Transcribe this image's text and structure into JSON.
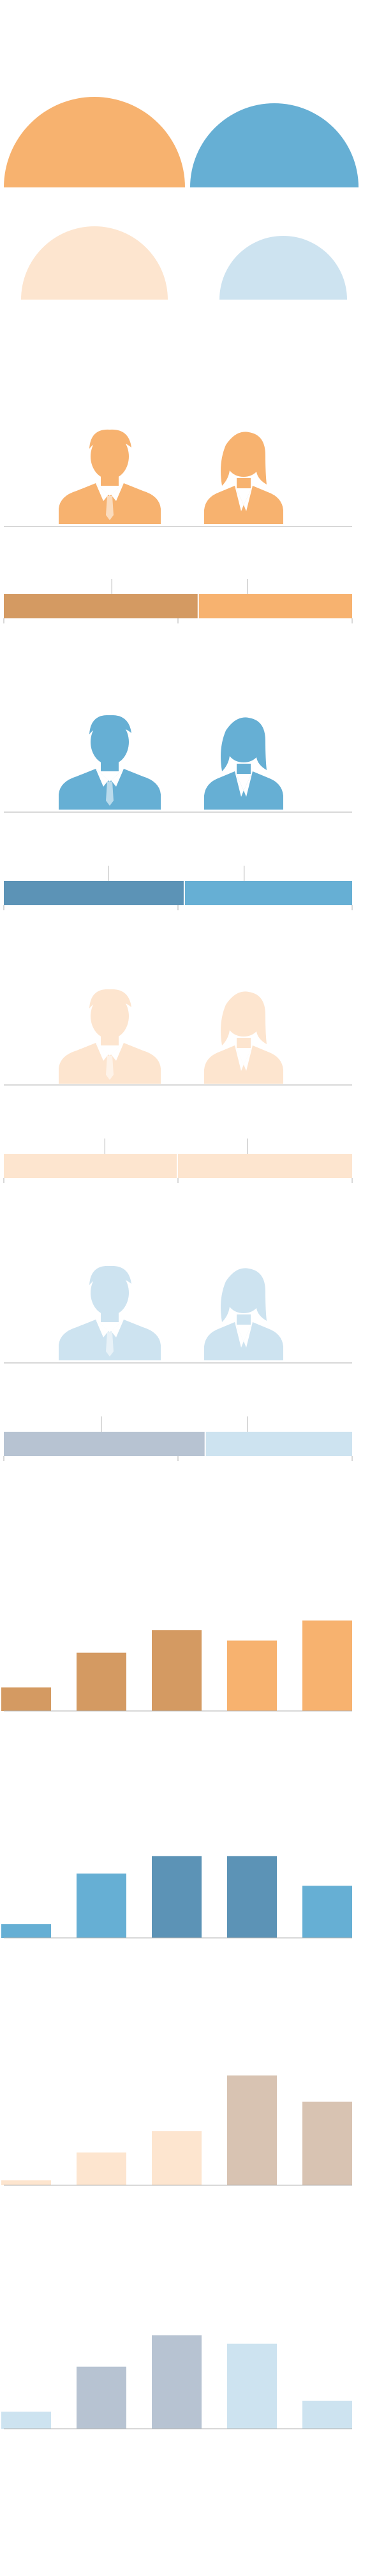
{
  "palette": {
    "orange": "#f7b26f",
    "orange_dark": "#d49a62",
    "orange_light": "#fde5cf",
    "blue": "#66afd4",
    "blue_dark": "#5c93b6",
    "blue_light": "#cde3f0",
    "slate": "#b7c3d2",
    "taupe": "#d8c3b2",
    "axis": "#b0b0b0"
  },
  "icons": [
    "half-disc-icon",
    "male-person-icon",
    "female-person-icon"
  ],
  "chart_data": [
    {
      "type": "semicircle-pair",
      "series": [
        {
          "values": [
            1,
            0.9
          ],
          "colors": [
            "orange",
            "blue"
          ]
        },
        {
          "values": [
            0.8,
            0.7
          ],
          "colors": [
            "orange_light",
            "blue_light"
          ]
        }
      ]
    },
    {
      "type": "pictograph-bar",
      "icons": [
        "male",
        "female"
      ],
      "icon_color": "orange",
      "bar_split": 0.56,
      "bar_colors": [
        "orange_dark",
        "orange"
      ],
      "marks": [
        0.31,
        0.7
      ],
      "grid": false
    },
    {
      "type": "pictograph-bar",
      "icons": [
        "male",
        "female"
      ],
      "icon_color": "blue",
      "bar_split": 0.52,
      "bar_colors": [
        "blue_dark",
        "blue"
      ],
      "marks": [
        0.3,
        0.69
      ],
      "grid": false
    },
    {
      "type": "pictograph-bar",
      "icons": [
        "male",
        "female"
      ],
      "icon_color": "orange_light",
      "bar_split": 0.5,
      "bar_colors": [
        "orange_light",
        "orange_light"
      ],
      "marks": [
        0.29,
        0.7
      ],
      "grid": false
    },
    {
      "type": "pictograph-bar",
      "icons": [
        "male",
        "female"
      ],
      "icon_color": "blue_light",
      "bar_split": 0.58,
      "bar_colors": [
        "slate",
        "blue_light"
      ],
      "marks": [
        0.28,
        0.7
      ],
      "grid": false
    },
    {
      "type": "bar",
      "values": [
        27,
        67,
        93,
        81,
        104
      ],
      "colors": [
        "orange_dark",
        "orange_dark",
        "orange_dark",
        "orange",
        "orange"
      ],
      "ylim": [
        0,
        110
      ],
      "grid": false
    },
    {
      "type": "bar",
      "values": [
        16,
        74,
        94,
        94,
        60
      ],
      "colors": [
        "blue",
        "blue",
        "blue_dark",
        "blue_dark",
        "blue"
      ],
      "ylim": [
        0,
        110
      ],
      "grid": false
    },
    {
      "type": "bar",
      "values": [
        6,
        40,
        66,
        134,
        102
      ],
      "colors": [
        "orange_light",
        "orange_light",
        "orange_light",
        "taupe",
        "taupe"
      ],
      "ylim": [
        0,
        140
      ],
      "grid": false
    },
    {
      "type": "bar",
      "values": [
        20,
        73,
        110,
        100,
        33
      ],
      "colors": [
        "blue_light",
        "slate",
        "slate",
        "blue_light",
        "blue_light"
      ],
      "ylim": [
        0,
        120
      ],
      "grid": false
    }
  ]
}
